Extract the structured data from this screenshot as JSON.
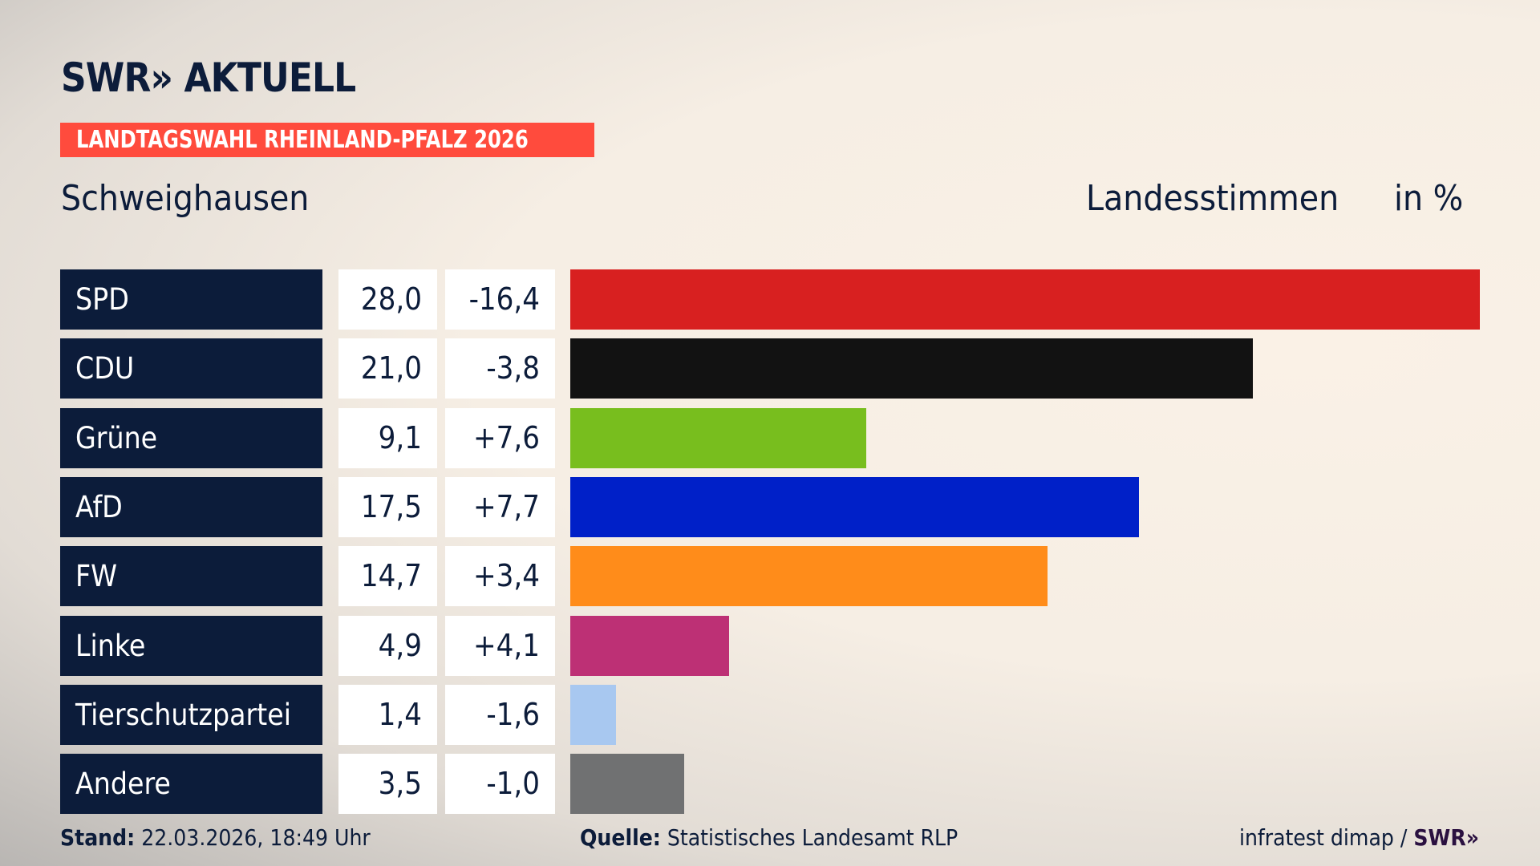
{
  "brand": {
    "logo": "SWR» AKTUELL"
  },
  "banner": "LANDTAGSWAHL RHEINLAND-PFALZ 2026",
  "location": "Schweighausen",
  "chart_data": {
    "type": "bar",
    "orientation": "horizontal",
    "title": "Landesstimmen",
    "unit": "in %",
    "categories": [
      "SPD",
      "CDU",
      "Grüne",
      "AfD",
      "FW",
      "Linke",
      "Tierschutzpartei",
      "Andere"
    ],
    "values": [
      28.0,
      21.0,
      9.1,
      17.5,
      14.7,
      4.9,
      1.4,
      3.5
    ],
    "value_labels": [
      "28,0",
      "21,0",
      "9,1",
      "17,5",
      "14,7",
      "4,9",
      "1,4",
      "3,5"
    ],
    "changes": [
      "-16,4",
      "-3,8",
      "+7,6",
      "+7,7",
      "+3,4",
      "+4,1",
      "-1,6",
      "-1,0"
    ],
    "colors": [
      "#d82020",
      "#121212",
      "#78be1e",
      "#0020c8",
      "#ff8c1a",
      "#bd3075",
      "#a8c8f0",
      "#707172"
    ],
    "xlim": [
      0,
      28
    ]
  },
  "footer": {
    "stand_label": "Stand:",
    "stand_value": "22.03.2026, 18:49 Uhr",
    "source_label": "Quelle:",
    "source_value": "Statistisches Landesamt RLP",
    "credit": "infratest dimap /",
    "credit_logo": "SWR»"
  }
}
